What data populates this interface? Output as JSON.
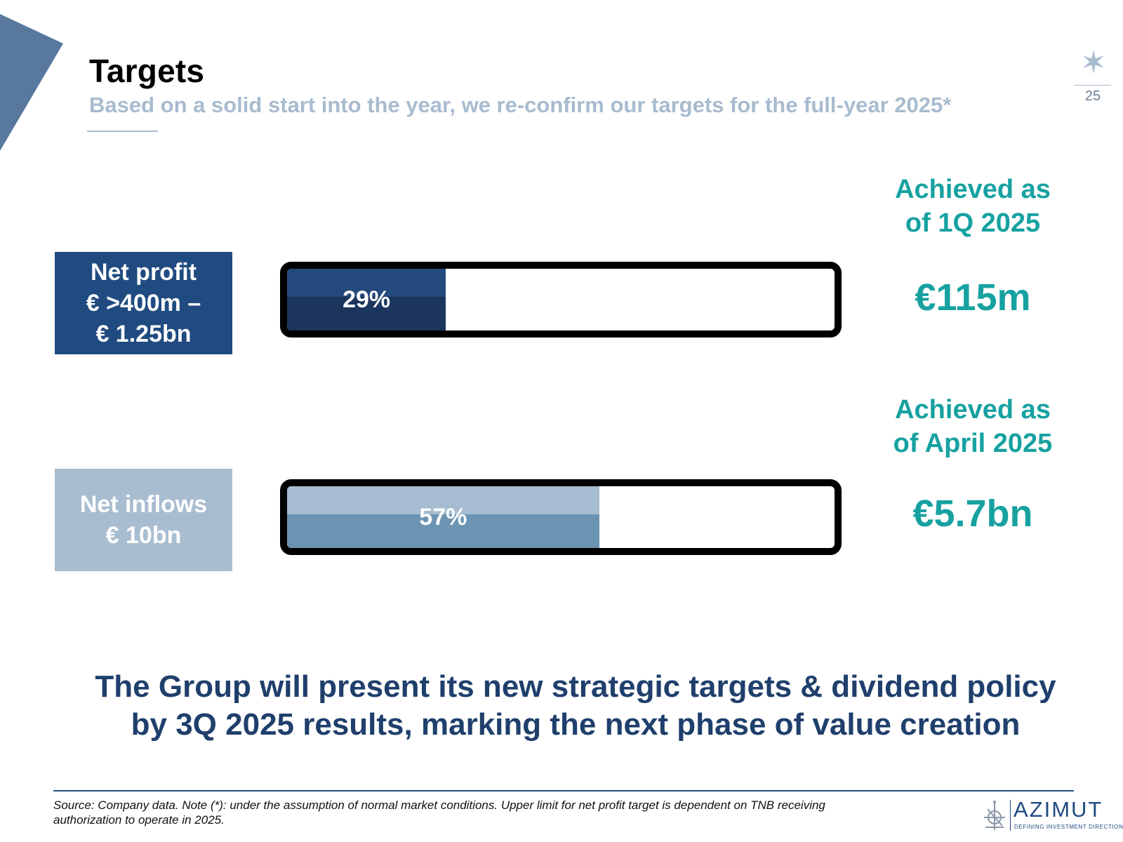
{
  "header": {
    "title": "Targets",
    "subtitle": "Based on a solid start into the year, we re-confirm our targets for the full-year 2025*",
    "page_number": "25"
  },
  "targets": [
    {
      "label_lines": [
        "Net profit",
        "€ >400m –",
        "€ 1.25bn"
      ],
      "progress_label": "29%",
      "progress_fraction": 0.29,
      "achieved_label_lines": [
        "Achieved as",
        "of 1Q 2025"
      ],
      "achieved_value": "€115m"
    },
    {
      "label_lines": [
        "Net inflows",
        "€ 10bn"
      ],
      "progress_label": "57%",
      "progress_fraction": 0.57,
      "achieved_label_lines": [
        "Achieved as",
        "of April 2025"
      ],
      "achieved_value": "€5.7bn"
    }
  ],
  "closing_statement": {
    "line1": "The Group will present its new strategic targets & dividend policy",
    "line2": "by 3Q 2025 results, marking the next phase of value creation"
  },
  "footer": {
    "source_line1": "Source: Company data. Note (*): under the assumption of normal market conditions. Upper limit for net profit target is dependent on TNB receiving",
    "source_line2": "authorization to operate in 2025.",
    "logo_word": "AZIMUT",
    "logo_tagline": "DEFINING INVESTMENT DIRECTION"
  },
  "colors": {
    "navy": "#204b80",
    "light_blue": "#a8bdd0",
    "teal": "#17a1a1",
    "subtitle_grey_blue": "#a8bbcf"
  },
  "icons": [
    "star-icon",
    "azimut-logo-icon"
  ]
}
